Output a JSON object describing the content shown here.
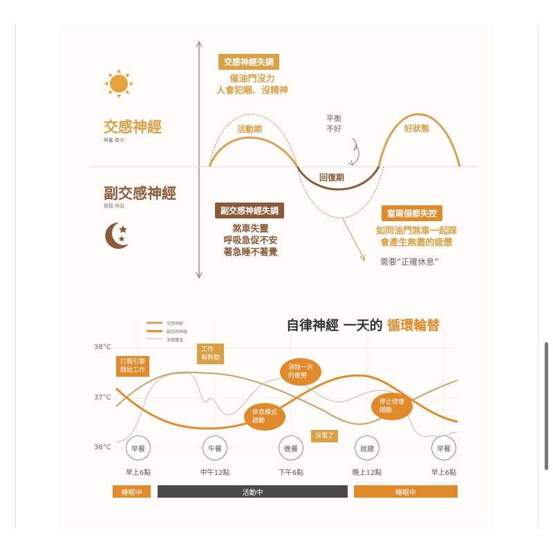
{
  "top": {
    "sympathetic": {
      "title": "交感神經",
      "subtitle": "興奮‧集中"
    },
    "parasympathetic": {
      "title": "副交感神經",
      "subtitle": "放鬆‧休息"
    },
    "symp_disorder": {
      "tag": "交感神經失調",
      "lines": [
        "催油門沒力",
        "人會犯睏、沒精神"
      ]
    },
    "para_disorder": {
      "tag": "副交感神經失調",
      "lines": [
        "煞車失靈",
        "呼吸急促不安",
        "著急睡不著覺"
      ]
    },
    "both": {
      "tag": "當兩個都失控",
      "lines": [
        "如同油門煞車一起踩",
        "會產生無盡的疲憊"
      ],
      "note": "需要“正確休息”"
    },
    "active": "活動期",
    "recovery": "回復期",
    "good": "好狀態",
    "balance": [
      "平衡",
      "不好"
    ]
  },
  "chart": {
    "title_dark": "自律神經 一天的",
    "title_accent": "循環輪替",
    "legend": [
      "交感神經",
      "副交感神經",
      "深層體溫"
    ],
    "y_ticks": [
      "38°C",
      "37°C",
      "36°C"
    ],
    "meals": [
      "早餐",
      "午餐",
      "晚餐",
      "就寢",
      "早餐"
    ],
    "times": [
      "早上6點",
      "中午12點",
      "下午6點",
      "晚上12點",
      "早上6點"
    ],
    "callouts": {
      "start": "打開引擎\n開始工作",
      "work": "工作\n有幹勁",
      "relieve": "消除一天\n的疲勞",
      "rest": "休息模式\n啟動",
      "empty": "沒電了",
      "repair": "停止修復\n細胞"
    },
    "bars": [
      "睡眠中",
      "活動中",
      "睡眠中"
    ],
    "colors": {
      "sympathetic": "#c9a066",
      "parasympathetic": "#e08a2c",
      "temperature": "#bbbbbb",
      "active_bar": "#4a4a4a"
    }
  }
}
